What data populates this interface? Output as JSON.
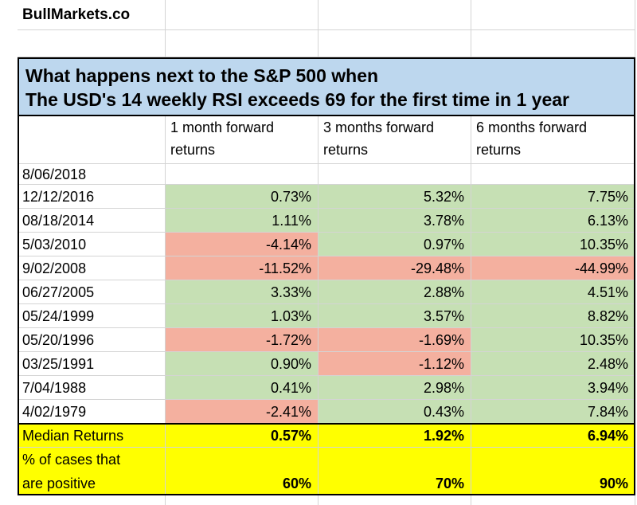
{
  "brand": "BullMarkets.co",
  "title": {
    "line1": "What happens next to the S&P 500 when",
    "line2": "The USD's 14 weekly RSI exceeds 69 for the first time in 1 year"
  },
  "headers": {
    "col1": [
      "1 month forward",
      "returns"
    ],
    "col2": [
      "3 months forward",
      "returns"
    ],
    "col3": [
      "6 months forward",
      "returns"
    ]
  },
  "first_date": "8/06/2018",
  "rows": [
    {
      "date": "12/12/2016",
      "m1": "0.73%",
      "m3": "5.32%",
      "m6": "7.75%",
      "c1": "green",
      "c3": "green",
      "c6": "green"
    },
    {
      "date": "08/18/2014",
      "m1": "1.11%",
      "m3": "3.78%",
      "m6": "6.13%",
      "c1": "green",
      "c3": "green",
      "c6": "green"
    },
    {
      "date": "5/03/2010",
      "m1": "-4.14%",
      "m3": "0.97%",
      "m6": "10.35%",
      "c1": "red",
      "c3": "green",
      "c6": "green"
    },
    {
      "date": "9/02/2008",
      "m1": "-11.52%",
      "m3": "-29.48%",
      "m6": "-44.99%",
      "c1": "red",
      "c3": "red",
      "c6": "red"
    },
    {
      "date": "06/27/2005",
      "m1": "3.33%",
      "m3": "2.88%",
      "m6": "4.51%",
      "c1": "green",
      "c3": "green",
      "c6": "green"
    },
    {
      "date": "05/24/1999",
      "m1": "1.03%",
      "m3": "3.57%",
      "m6": "8.82%",
      "c1": "green",
      "c3": "green",
      "c6": "green"
    },
    {
      "date": "05/20/1996",
      "m1": "-1.72%",
      "m3": "-1.69%",
      "m6": "10.35%",
      "c1": "red",
      "c3": "red",
      "c6": "green"
    },
    {
      "date": "03/25/1991",
      "m1": "0.90%",
      "m3": "-1.12%",
      "m6": "2.48%",
      "c1": "green",
      "c3": "red",
      "c6": "green"
    },
    {
      "date": "7/04/1988",
      "m1": "0.41%",
      "m3": "2.98%",
      "m6": "3.94%",
      "c1": "green",
      "c3": "green",
      "c6": "green"
    },
    {
      "date": "4/02/1979",
      "m1": "-2.41%",
      "m3": "0.43%",
      "m6": "7.84%",
      "c1": "red",
      "c3": "green",
      "c6": "green"
    }
  ],
  "median": {
    "label": "Median Returns",
    "m1": "0.57%",
    "m3": "1.92%",
    "m6": "6.94%"
  },
  "positive": {
    "label_line1": "% of cases that",
    "label_line2": "are positive",
    "m1": "60%",
    "m3": "70%",
    "m6": "90%"
  },
  "colors": {
    "green": "#c6e0b4",
    "red": "#f4b09f",
    "yellow": "#ffff00",
    "title_bg": "#bdd7ee"
  }
}
